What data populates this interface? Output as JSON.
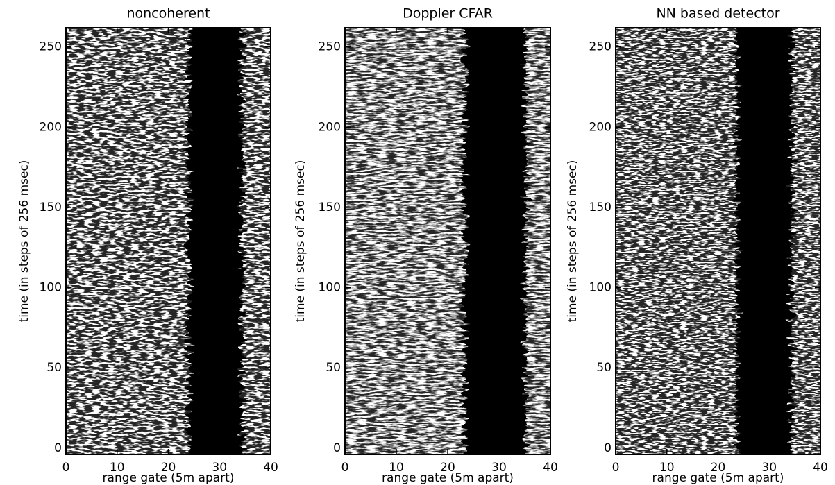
{
  "chart_data": [
    {
      "type": "heatmap",
      "title": "noncoherent",
      "xlabel": "range gate (5m apart)",
      "ylabel": "time (in steps of 256 msec)",
      "xlim": [
        0,
        40
      ],
      "xticks": [
        0,
        10,
        20,
        30,
        40
      ],
      "ylim": [
        -4,
        262
      ],
      "yticks": [
        0,
        50,
        100,
        150,
        200,
        250
      ]
    },
    {
      "type": "heatmap",
      "title": "Doppler CFAR",
      "xlabel": "range gate (5m apart)",
      "ylabel": "time (in steps of 256 msec)",
      "xlim": [
        0,
        40
      ],
      "xticks": [
        0,
        10,
        20,
        30,
        40
      ],
      "ylim": [
        -4,
        262
      ],
      "yticks": [
        0,
        50,
        100,
        150,
        200,
        250
      ]
    },
    {
      "type": "heatmap",
      "title": "NN based detector",
      "xlabel": "range gate (5m apart)",
      "ylabel": "time (in steps of 256 msec)",
      "xlim": [
        0,
        40
      ],
      "xticks": [
        0,
        10,
        20,
        30,
        40
      ],
      "ylim": [
        -4,
        262
      ],
      "yticks": [
        0,
        50,
        100,
        150,
        200,
        250
      ]
    }
  ]
}
